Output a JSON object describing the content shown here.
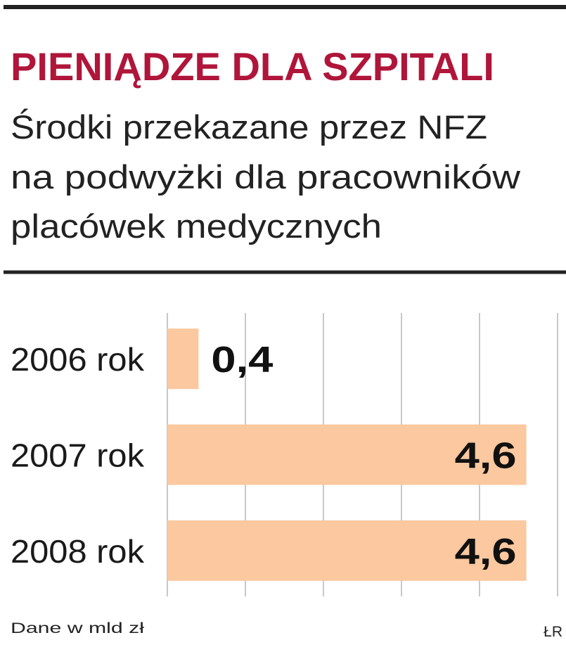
{
  "chart_data": {
    "type": "bar",
    "orientation": "horizontal",
    "title": "PIENIĄDZE DLA SZPITALI",
    "subtitle": [
      "Środki przekazane przez NFZ",
      "na podwyżki dla pracowników",
      "placówek medycznych"
    ],
    "categories": [
      "2006 rok",
      "2007 rok",
      "2008 rok"
    ],
    "values": [
      0.4,
      4.6,
      4.6
    ],
    "value_labels": [
      "0,4",
      "4,6",
      "4,6"
    ],
    "color": "#fbc89f",
    "xlim": [
      0,
      5
    ],
    "xticks": [
      0,
      1,
      2,
      3,
      4,
      5
    ],
    "grid": true,
    "note": "Dane w mld zł",
    "source": "ŁR"
  }
}
